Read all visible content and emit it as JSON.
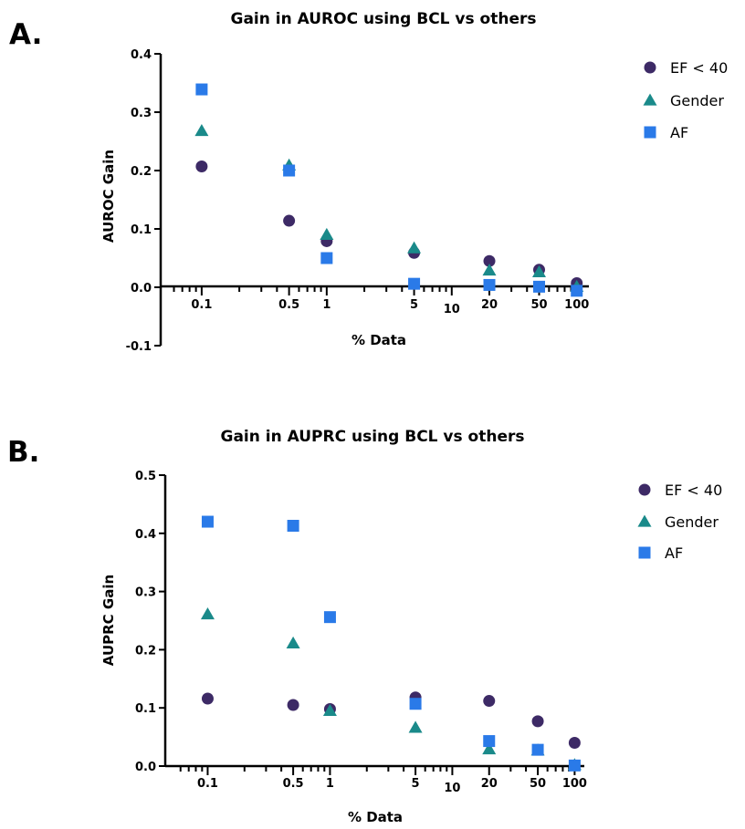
{
  "colors": {
    "EF": "#3d2a66",
    "Gender": "#1a8a8a",
    "AF": "#2a7ae8"
  },
  "chart_data": [
    {
      "type": "scatter",
      "panel_label": "A.",
      "title": "Gain in AUROC using BCL vs others",
      "xlabel": "% Data",
      "ylabel": "AUROC Gain",
      "xscale": "log",
      "x_tick_labels": [
        "0.1",
        "0.5",
        "1",
        "5",
        "10",
        "20",
        "50",
        "100"
      ],
      "y_ticks": [
        -0.1,
        0.0,
        0.1,
        0.2,
        0.3,
        0.4
      ],
      "y_tick_labels": [
        "-0.1",
        "0.0",
        "0.1",
        "0.2",
        "0.3",
        "0.4"
      ],
      "ylim": [
        -0.1,
        0.4
      ],
      "x": [
        0.1,
        0.5,
        1,
        5,
        20,
        50,
        100
      ],
      "legend_position": "top-right",
      "series": [
        {
          "name": "EF < 40",
          "marker": "circle",
          "values": [
            0.207,
            0.114,
            0.079,
            0.059,
            0.045,
            0.03,
            0.007
          ]
        },
        {
          "name": "Gender",
          "marker": "triangle",
          "values": [
            0.268,
            0.209,
            0.09,
            0.067,
            0.029,
            0.026,
            0.001
          ]
        },
        {
          "name": "AF",
          "marker": "square",
          "values": [
            0.339,
            0.2,
            0.05,
            0.006,
            0.004,
            0.001,
            -0.006
          ]
        }
      ]
    },
    {
      "type": "scatter",
      "panel_label": "B.",
      "title": "Gain in AUPRC using BCL vs others",
      "xlabel": "% Data",
      "ylabel": "AUPRC Gain",
      "xscale": "log",
      "x_tick_labels": [
        "0.1",
        "0.5",
        "1",
        "5",
        "10",
        "20",
        "50",
        "100"
      ],
      "y_ticks": [
        0.0,
        0.1,
        0.2,
        0.3,
        0.4,
        0.5
      ],
      "y_tick_labels": [
        "0.0",
        "0.1",
        "0.2",
        "0.3",
        "0.4",
        "0.5"
      ],
      "ylim": [
        0.0,
        0.5
      ],
      "x": [
        0.1,
        0.5,
        1,
        5,
        20,
        50,
        100
      ],
      "legend_position": "top-right",
      "series": [
        {
          "name": "EF < 40",
          "marker": "circle",
          "values": [
            0.116,
            0.105,
            0.098,
            0.118,
            0.112,
            0.077,
            0.04
          ]
        },
        {
          "name": "Gender",
          "marker": "triangle",
          "values": [
            0.261,
            0.211,
            0.095,
            0.066,
            0.029,
            0.027,
            0.002
          ]
        },
        {
          "name": "AF",
          "marker": "square",
          "values": [
            0.42,
            0.413,
            0.256,
            0.107,
            0.043,
            0.028,
            0.001
          ]
        }
      ]
    }
  ]
}
